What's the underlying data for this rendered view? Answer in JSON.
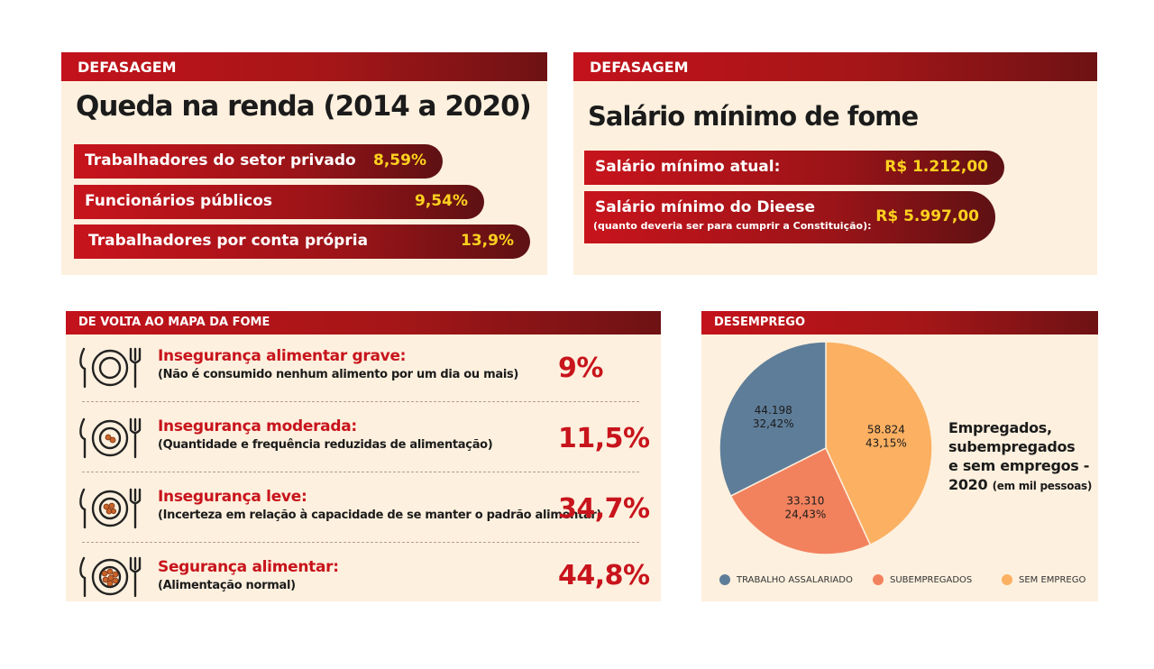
{
  "panel1": {
    "header": "DEFASAGEM",
    "title": "Queda na renda (2014 a 2020)",
    "items": [
      {
        "label": "Trabalhadores do setor privado",
        "value": "8,59%"
      },
      {
        "label": "Funcionários públicos",
        "value": "9,54%"
      },
      {
        "label": "Trabalhadores por conta própria",
        "value": "13,9%"
      }
    ]
  },
  "panel2": {
    "header": "DEFASAGEM",
    "title": "Salário mínimo de fome",
    "items": [
      {
        "label": "Salário mínimo atual:",
        "value": "R$ 1.212,00"
      },
      {
        "label": "Salário mínimo do Dieese",
        "note": "(quanto deveria ser para cumprir a Constituição):",
        "value": "R$ 5.997,00"
      }
    ]
  },
  "panel3": {
    "header": "DE VOLTA AO MAPA DA FOME",
    "rows": [
      {
        "label": "Insegurança alimentar grave:",
        "desc": "(Não é consumido nenhum alimento por um dia ou mais)",
        "value": "9%"
      },
      {
        "label": "Insegurança moderada:",
        "desc": "(Quantidade e frequência reduzidas de alimentação)",
        "value": "11,5%"
      },
      {
        "label": "Insegurança leve:",
        "desc": "(Incerteza em relação à capacidade de se manter o padrão alimentar)",
        "value": "34,7%"
      },
      {
        "label": "Segurança alimentar:",
        "desc": "(Alimentação normal)",
        "value": "44,8%"
      }
    ],
    "icon": "plate-cutlery-icon"
  },
  "panel4": {
    "header": "DESEMPREGO",
    "caption_lines": [
      "Empregados,",
      "subempregados",
      "e sem empregos -",
      "2020"
    ],
    "caption_unit": "(em mil pessoas)"
  },
  "colors": {
    "red": "#c8141c",
    "yellow": "#ffd21f",
    "panel_bg": "#fdf0de",
    "slate": "#5e7d99",
    "salmon": "#f2825e",
    "orange": "#fbb062"
  },
  "chart_data": {
    "type": "pie",
    "title": "Empregados, subempregados e sem empregos - 2020 (em mil pessoas)",
    "slices": [
      {
        "name": "SEM EMPREGO",
        "value": 58.824,
        "value_label": "58.824",
        "pct_label": "43,15%",
        "color": "#fbb062"
      },
      {
        "name": "SUBEMPREGADOS",
        "value": 33.31,
        "value_label": "33.310",
        "pct_label": "24,43%",
        "color": "#f2825e"
      },
      {
        "name": "TRABALHO ASSALARIADO",
        "value": 44.198,
        "value_label": "44.198",
        "pct_label": "32,42%",
        "color": "#5e7d99"
      }
    ],
    "legend": [
      "TRABALHO ASSALARIADO",
      "SUBEMPREGADOS",
      "SEM EMPREGO"
    ],
    "legend_position": "bottom"
  }
}
